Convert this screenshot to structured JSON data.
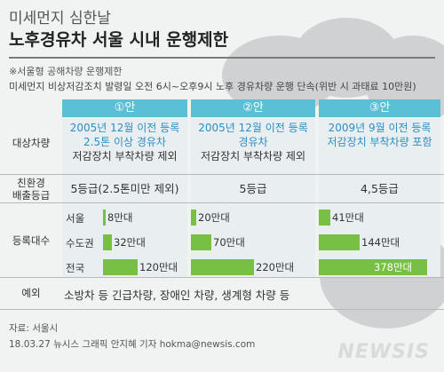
{
  "title_line1": "미세먼지 심한날",
  "title_line2": "노후경유차 서울 시내 운행제한",
  "note1": "※서울형 공해차량 운행제한",
  "note2": "미세먼지 비상저감조치 발령일 오전 6시~오후9시 노후 경유차량 운행 단속(위반 시 과태료 10만원)",
  "row_labels": {
    "target": "대상차량",
    "grade": "친환경\n배출등급",
    "count": "등록대수",
    "exception": "예외"
  },
  "plans": [
    {
      "head": "①안",
      "line1": "2005년 12월 이전 등록",
      "line2": "2.5톤 이상 경유차",
      "line3": "저감장치 부착차량 제외",
      "grade": "5등급(2.5톤미만 제외)"
    },
    {
      "head": "②안",
      "line1": "2005년 12월 이전 등록",
      "line2": "경유차",
      "line3": "저감장치 부착차량 제외",
      "grade": "5등급"
    },
    {
      "head": "③안",
      "line1": "2009년 9월 이전 등록",
      "line2": "저감장치 부착차량 포함",
      "line3": "",
      "grade": "4,5등급"
    }
  ],
  "exception_text": "소방차 등 긴급차량, 장애인 차량, 생계형 차량 등",
  "chart_data": {
    "type": "bar",
    "unit": "만대",
    "categories": [
      "서울",
      "수도권",
      "전국"
    ],
    "series": [
      {
        "name": "①안",
        "values": [
          8,
          32,
          120
        ],
        "labels": [
          "8만대",
          "32만대",
          "120만대"
        ]
      },
      {
        "name": "②안",
        "values": [
          20,
          70,
          220
        ],
        "labels": [
          "20만대",
          "70만대",
          "220만대"
        ]
      },
      {
        "name": "③안",
        "values": [
          41,
          144,
          378
        ],
        "labels": [
          "41만대",
          "144만대",
          "378만대"
        ]
      }
    ],
    "colors": {
      "bar": "#77c043",
      "header": "#5bc0d6",
      "highlight_text": "#2b8fc4"
    }
  },
  "footer_source": "자료: 서울시",
  "footer_credit": "18.03.27 뉴시스 그래픽 안지혜 기자 hokma@newsis.com",
  "logo": "NEWSIS"
}
